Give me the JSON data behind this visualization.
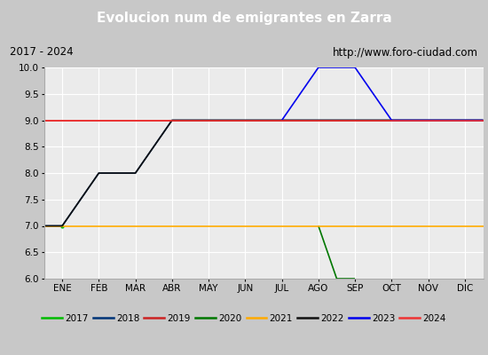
{
  "title": "Evolucion num de emigrantes en Zarra",
  "title_color": "white",
  "title_bg": "#4472a8",
  "subtitle_left": "2017 - 2024",
  "subtitle_right": "http://www.foro-ciudad.com",
  "subtitle_bg": "#e0e0e0",
  "plot_bg": "#ebebeb",
  "grid_color": "#ffffff",
  "ylim": [
    6.0,
    10.0
  ],
  "yticks": [
    6.0,
    6.5,
    7.0,
    7.5,
    8.0,
    8.5,
    9.0,
    9.5,
    10.0
  ],
  "months": [
    "ENE",
    "FEB",
    "MAR",
    "ABR",
    "MAY",
    "JUN",
    "JUL",
    "AGO",
    "SEP",
    "OCT",
    "NOV",
    "DIC"
  ],
  "series": {
    "2017": {
      "color": "#00bb00",
      "x": [
        0
      ],
      "y": [
        7.0
      ]
    },
    "2018": {
      "color": "#003377",
      "x": [
        -0.5,
        0,
        1,
        2,
        3,
        4,
        5,
        6,
        7,
        8,
        9,
        10,
        11,
        11.5
      ],
      "y": [
        7.0,
        7.0,
        8.0,
        8.0,
        9.0,
        9.0,
        9.0,
        9.0,
        9.0,
        9.0,
        9.0,
        9.0,
        9.0,
        9.0
      ]
    },
    "2019": {
      "color": "#cc2222",
      "x": [
        -0.5,
        11.5
      ],
      "y": [
        9.0,
        9.0
      ]
    },
    "2020": {
      "color": "#007700",
      "x": [
        7,
        7.5,
        8
      ],
      "y": [
        7.0,
        6.0,
        6.0
      ]
    },
    "2021": {
      "color": "#ffaa00",
      "x": [
        -0.5,
        11.5
      ],
      "y": [
        7.0,
        7.0
      ]
    },
    "2022": {
      "color": "#111111",
      "x": [
        -0.5,
        0,
        1,
        2,
        3,
        4,
        5,
        6,
        7,
        8,
        9,
        10,
        11,
        11.5
      ],
      "y": [
        7.0,
        7.0,
        8.0,
        8.0,
        9.0,
        9.0,
        9.0,
        9.0,
        9.0,
        9.0,
        9.0,
        9.0,
        9.0,
        9.0
      ]
    },
    "2023": {
      "color": "#0000ee",
      "x": [
        6,
        7,
        8,
        9,
        10,
        11,
        11.5
      ],
      "y": [
        9.0,
        10.0,
        10.0,
        9.0,
        9.0,
        9.0,
        9.0
      ]
    },
    "2024": {
      "color": "#ee3333",
      "x": [
        -0.5,
        11.5
      ],
      "y": [
        9.0,
        9.0
      ]
    }
  },
  "legend_order": [
    "2017",
    "2018",
    "2019",
    "2020",
    "2021",
    "2022",
    "2023",
    "2024"
  ]
}
